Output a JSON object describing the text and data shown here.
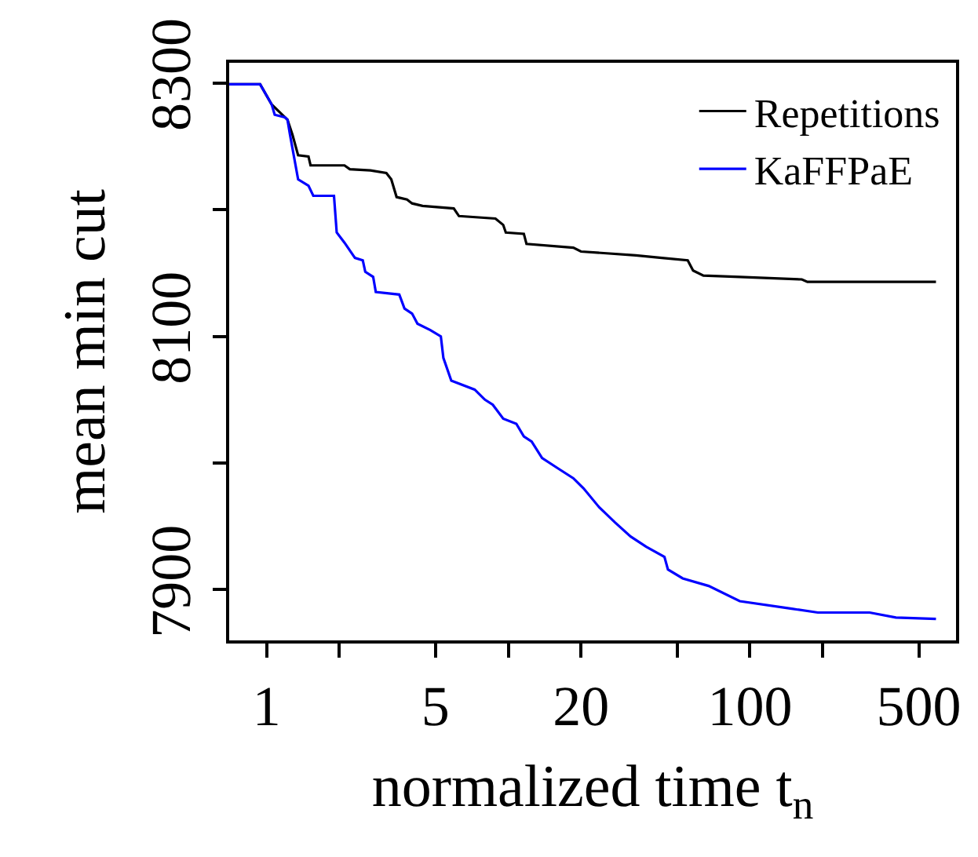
{
  "chart_data": {
    "type": "line",
    "xlabel": "normalized time t$_{n}$",
    "ylabel": "mean min cut",
    "log": "x",
    "xlim": [
      0.7,
      713
    ],
    "ylim": [
      7860,
      8316
    ],
    "xticks": [
      1,
      {
        "value": 2,
        "label": null
      },
      5,
      {
        "value": 10,
        "label": null
      },
      20,
      {
        "value": 50,
        "label": null
      },
      100,
      {
        "value": 200,
        "label": null
      },
      500
    ],
    "yticks": [
      7900,
      {
        "value": 8000,
        "label": null
      },
      8100,
      {
        "value": 8200,
        "label": null
      },
      8300
    ],
    "legend": "top right",
    "marker": "none",
    "line_style": "solid",
    "series": [
      {
        "name": "Repetitions",
        "color": "#000000",
        "x": [
          0.7,
          0.94,
          1.05,
          1.22,
          1.28,
          1.35,
          1.49,
          1.52,
          2.1,
          2.21,
          2.69,
          3.13,
          3.28,
          3.45,
          3.81,
          4.0,
          4.42,
          5.95,
          6.25,
          8.85,
          9.53,
          9.77,
          11.6,
          11.9,
          18.6,
          20.0,
          33.7,
          43.2,
          55.3,
          58.2,
          64.2,
          90.8,
          164,
          173,
          589
        ],
        "values": [
          8299,
          8299,
          8283,
          8271,
          8259,
          8243,
          8242,
          8235,
          8235,
          8232,
          8231,
          8229,
          8224,
          8210,
          8208,
          8205,
          8203,
          8201,
          8195,
          8193,
          8188,
          8182,
          8181,
          8173,
          8170,
          8167,
          8164,
          8162,
          8160,
          8152,
          8148,
          8147,
          8145,
          8143,
          8143
        ]
      },
      {
        "name": "KaFFPaE",
        "color": "#0000ff",
        "x": [
          0.7,
          0.94,
          1.05,
          1.08,
          1.19,
          1.22,
          1.25,
          1.35,
          1.49,
          1.56,
          1.9,
          1.95,
          2.1,
          2.32,
          2.5,
          2.56,
          2.76,
          2.83,
          3.54,
          3.72,
          4.0,
          4.21,
          4.76,
          5.26,
          5.39,
          5.81,
          7.26,
          8.01,
          8.63,
          9.53,
          10.8,
          11.6,
          12.5,
          13.8,
          16.0,
          18.6,
          20.5,
          23.8,
          27.7,
          32.1,
          37.2,
          44.3,
          45.8,
          52.7,
          67.5,
          90.8,
          149,
          191,
          313,
          402,
          589
        ],
        "values": [
          8299,
          8299,
          8283,
          8275,
          8273,
          8271,
          8259,
          8224,
          8219,
          8211,
          8211,
          8182,
          8174,
          8162,
          8160,
          8151,
          8147,
          8135,
          8133,
          8122,
          8118,
          8110,
          8105,
          8100,
          8083,
          8065,
          8058,
          8050,
          8046,
          8035,
          8031,
          8021,
          8017,
          8004,
          7996,
          7988,
          7980,
          7965,
          7953,
          7942,
          7934,
          7926,
          7916,
          7909,
          7903,
          7891,
          7885,
          7882,
          7882,
          7878,
          7877
        ]
      }
    ]
  }
}
